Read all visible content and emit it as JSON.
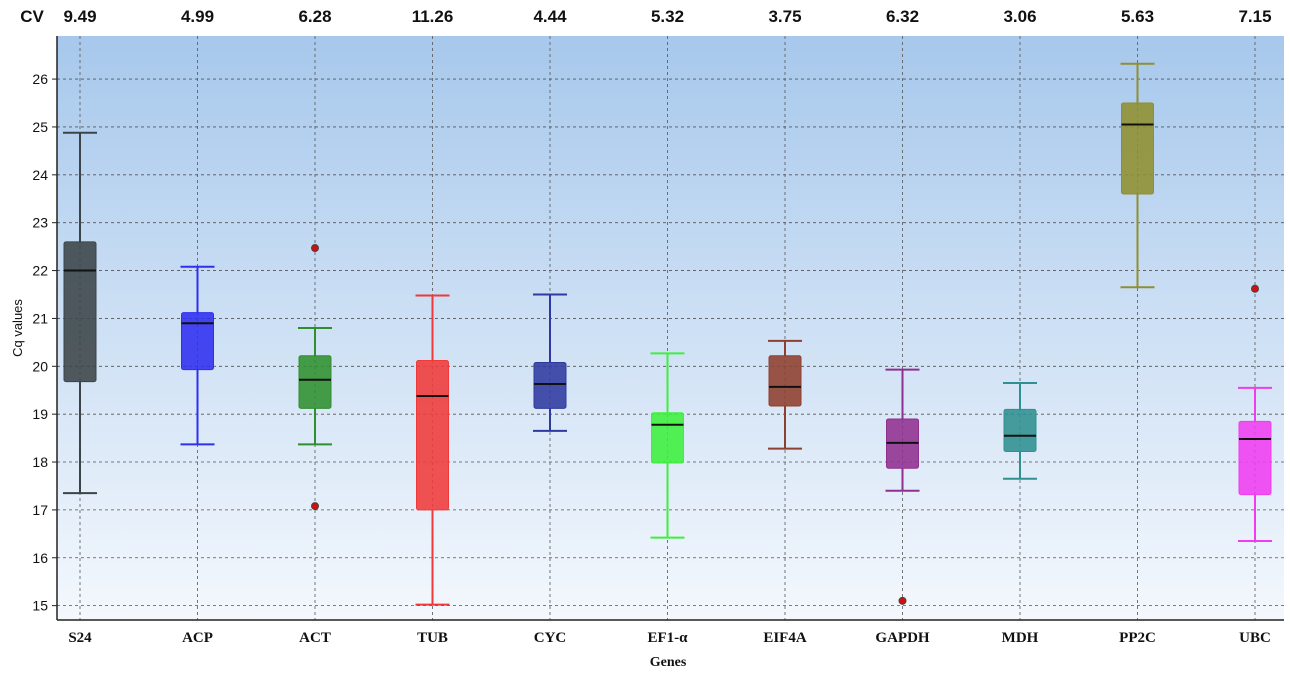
{
  "chart_data": {
    "type": "box",
    "cv_label": "CV",
    "xlabel": "Genes",
    "ylabel": "Cq values",
    "ylim": [
      14.7,
      26.9
    ],
    "yticks": [
      15,
      16,
      17,
      18,
      19,
      20,
      21,
      22,
      23,
      24,
      25,
      26
    ],
    "grid": true,
    "series": [
      {
        "name": "S24",
        "cv": "9.49",
        "color": "#3b4448",
        "min": 17.35,
        "q1": 19.68,
        "median": 22.0,
        "q3": 22.6,
        "max": 24.88,
        "outliers": []
      },
      {
        "name": "ACP",
        "cv": "4.99",
        "color": "#2f2ff0",
        "min": 18.37,
        "q1": 19.93,
        "median": 20.9,
        "q3": 21.12,
        "max": 22.08,
        "outliers": []
      },
      {
        "name": "ACT",
        "cv": "6.28",
        "color": "#2f8f2f",
        "min": 18.37,
        "q1": 19.12,
        "median": 19.72,
        "q3": 20.22,
        "max": 20.8,
        "outliers": [
          22.47,
          17.08
        ]
      },
      {
        "name": "TUB",
        "cv": "11.26",
        "color": "#f03a3a",
        "min": 15.02,
        "q1": 17.0,
        "median": 19.38,
        "q3": 20.12,
        "max": 21.48,
        "outliers": []
      },
      {
        "name": "CYC",
        "cv": "4.44",
        "color": "#2f3a9f",
        "min": 18.65,
        "q1": 19.12,
        "median": 19.63,
        "q3": 20.08,
        "max": 21.5,
        "outliers": []
      },
      {
        "name": "EF1-α",
        "cv": "5.32",
        "color": "#3cf03c",
        "min": 16.42,
        "q1": 17.98,
        "median": 18.78,
        "q3": 19.03,
        "max": 20.27,
        "outliers": []
      },
      {
        "name": "EIF4A",
        "cv": "3.75",
        "color": "#8f3f2f",
        "min": 18.28,
        "q1": 19.17,
        "median": 19.57,
        "q3": 20.22,
        "max": 20.53,
        "outliers": []
      },
      {
        "name": "GAPDH",
        "cv": "6.32",
        "color": "#8f2f8f",
        "min": 17.4,
        "q1": 17.87,
        "median": 18.4,
        "q3": 18.9,
        "max": 19.93,
        "outliers": [
          15.1
        ]
      },
      {
        "name": "MDH",
        "cv": "3.06",
        "color": "#2f9090",
        "min": 17.65,
        "q1": 18.22,
        "median": 18.55,
        "q3": 19.1,
        "max": 19.65,
        "outliers": []
      },
      {
        "name": "PP2C",
        "cv": "5.63",
        "color": "#8f8f2f",
        "min": 21.65,
        "q1": 23.6,
        "median": 25.05,
        "q3": 25.5,
        "max": 26.32,
        "outliers": []
      },
      {
        "name": "UBC",
        "cv": "7.15",
        "color": "#f03cf0",
        "min": 16.35,
        "q1": 17.32,
        "median": 18.48,
        "q3": 18.85,
        "max": 19.55,
        "outliers": [
          21.62
        ]
      }
    ]
  }
}
